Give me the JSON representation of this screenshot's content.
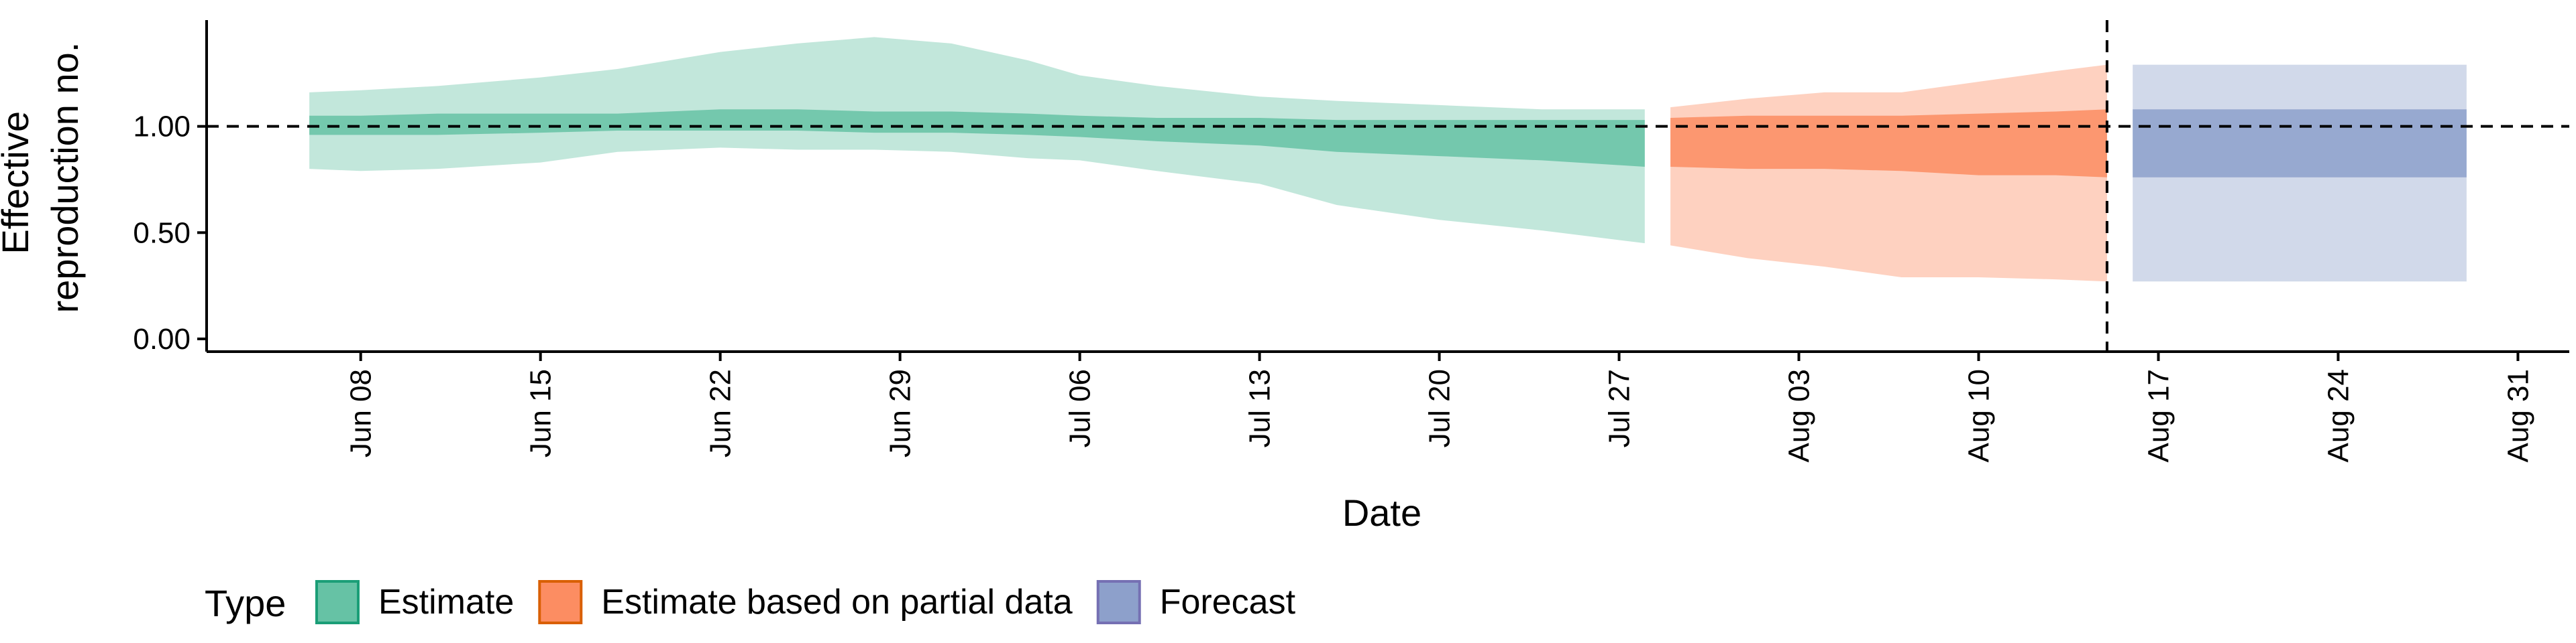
{
  "chart_data": {
    "type": "area",
    "xlabel": "Date",
    "ylabel_lines": [
      "Effective",
      "reproduction no."
    ],
    "x_ticks": [
      {
        "date": "2020-06-08",
        "label": "Jun 08"
      },
      {
        "date": "2020-06-15",
        "label": "Jun 15"
      },
      {
        "date": "2020-06-22",
        "label": "Jun 22"
      },
      {
        "date": "2020-06-29",
        "label": "Jun 29"
      },
      {
        "date": "2020-07-06",
        "label": "Jul 06"
      },
      {
        "date": "2020-07-13",
        "label": "Jul 13"
      },
      {
        "date": "2020-07-20",
        "label": "Jul 20"
      },
      {
        "date": "2020-07-27",
        "label": "Jul 27"
      },
      {
        "date": "2020-08-03",
        "label": "Aug 03"
      },
      {
        "date": "2020-08-10",
        "label": "Aug 10"
      },
      {
        "date": "2020-08-17",
        "label": "Aug 17"
      },
      {
        "date": "2020-08-24",
        "label": "Aug 24"
      },
      {
        "date": "2020-08-31",
        "label": "Aug 31"
      }
    ],
    "y_ticks": [
      {
        "value": 0.0,
        "label": "0.00"
      },
      {
        "value": 0.5,
        "label": "0.50"
      },
      {
        "value": 1.0,
        "label": "1.00"
      }
    ],
    "xlim": [
      "2020-06-02",
      "2020-09-02"
    ],
    "ylim": [
      -0.06,
      1.5
    ],
    "reference_line_y": 1.0,
    "reference_line_date": "2020-08-15",
    "grid": false,
    "legend": {
      "title": "Type",
      "position": "bottom-left",
      "items": [
        {
          "label": "Estimate",
          "fill": "#66c2a5",
          "stroke": "#1b9e77"
        },
        {
          "label": "Estimate based on partial data",
          "fill": "#fc8d62",
          "stroke": "#d95f02"
        },
        {
          "label": "Forecast",
          "fill": "#8da0cb",
          "stroke": "#7570b3"
        }
      ]
    },
    "series": [
      {
        "name": "Estimate",
        "color": "#1b9e77",
        "points": [
          {
            "date": "2020-06-06",
            "outer_lo": 0.8,
            "outer_hi": 1.16,
            "inner_lo": 0.96,
            "inner_hi": 1.05
          },
          {
            "date": "2020-06-08",
            "outer_lo": 0.79,
            "outer_hi": 1.17,
            "inner_lo": 0.96,
            "inner_hi": 1.05
          },
          {
            "date": "2020-06-11",
            "outer_lo": 0.8,
            "outer_hi": 1.19,
            "inner_lo": 0.96,
            "inner_hi": 1.06
          },
          {
            "date": "2020-06-15",
            "outer_lo": 0.83,
            "outer_hi": 1.23,
            "inner_lo": 0.97,
            "inner_hi": 1.06
          },
          {
            "date": "2020-06-18",
            "outer_lo": 0.88,
            "outer_hi": 1.27,
            "inner_lo": 0.98,
            "inner_hi": 1.06
          },
          {
            "date": "2020-06-22",
            "outer_lo": 0.9,
            "outer_hi": 1.35,
            "inner_lo": 0.98,
            "inner_hi": 1.08
          },
          {
            "date": "2020-06-25",
            "outer_lo": 0.89,
            "outer_hi": 1.39,
            "inner_lo": 0.98,
            "inner_hi": 1.08
          },
          {
            "date": "2020-06-28",
            "outer_lo": 0.89,
            "outer_hi": 1.42,
            "inner_lo": 0.97,
            "inner_hi": 1.07
          },
          {
            "date": "2020-07-01",
            "outer_lo": 0.88,
            "outer_hi": 1.39,
            "inner_lo": 0.97,
            "inner_hi": 1.07
          },
          {
            "date": "2020-07-04",
            "outer_lo": 0.85,
            "outer_hi": 1.31,
            "inner_lo": 0.96,
            "inner_hi": 1.06
          },
          {
            "date": "2020-07-06",
            "outer_lo": 0.84,
            "outer_hi": 1.24,
            "inner_lo": 0.95,
            "inner_hi": 1.05
          },
          {
            "date": "2020-07-09",
            "outer_lo": 0.79,
            "outer_hi": 1.19,
            "inner_lo": 0.93,
            "inner_hi": 1.04
          },
          {
            "date": "2020-07-13",
            "outer_lo": 0.73,
            "outer_hi": 1.14,
            "inner_lo": 0.91,
            "inner_hi": 1.04
          },
          {
            "date": "2020-07-16",
            "outer_lo": 0.63,
            "outer_hi": 1.12,
            "inner_lo": 0.88,
            "inner_hi": 1.03
          },
          {
            "date": "2020-07-20",
            "outer_lo": 0.56,
            "outer_hi": 1.1,
            "inner_lo": 0.86,
            "inner_hi": 1.03
          },
          {
            "date": "2020-07-24",
            "outer_lo": 0.51,
            "outer_hi": 1.08,
            "inner_lo": 0.84,
            "inner_hi": 1.03
          },
          {
            "date": "2020-07-28",
            "outer_lo": 0.45,
            "outer_hi": 1.08,
            "inner_lo": 0.81,
            "inner_hi": 1.03
          }
        ]
      },
      {
        "name": "Estimate based on partial data",
        "color": "#d95f02",
        "points": [
          {
            "date": "2020-07-29",
            "outer_lo": 0.44,
            "outer_hi": 1.09,
            "inner_lo": 0.81,
            "inner_hi": 1.04
          },
          {
            "date": "2020-08-01",
            "outer_lo": 0.38,
            "outer_hi": 1.13,
            "inner_lo": 0.8,
            "inner_hi": 1.05
          },
          {
            "date": "2020-08-04",
            "outer_lo": 0.34,
            "outer_hi": 1.16,
            "inner_lo": 0.8,
            "inner_hi": 1.05
          },
          {
            "date": "2020-08-07",
            "outer_lo": 0.29,
            "outer_hi": 1.16,
            "inner_lo": 0.79,
            "inner_hi": 1.05
          },
          {
            "date": "2020-08-10",
            "outer_lo": 0.29,
            "outer_hi": 1.21,
            "inner_lo": 0.77,
            "inner_hi": 1.06
          },
          {
            "date": "2020-08-13",
            "outer_lo": 0.28,
            "outer_hi": 1.26,
            "inner_lo": 0.77,
            "inner_hi": 1.07
          },
          {
            "date": "2020-08-15",
            "outer_lo": 0.27,
            "outer_hi": 1.29,
            "inner_lo": 0.76,
            "inner_hi": 1.08
          }
        ]
      },
      {
        "name": "Forecast",
        "color": "#7570b3",
        "points": [
          {
            "date": "2020-08-16",
            "outer_lo": 0.27,
            "outer_hi": 1.29,
            "inner_lo": 0.76,
            "inner_hi": 1.08
          },
          {
            "date": "2020-08-29",
            "outer_lo": 0.27,
            "outer_hi": 1.29,
            "inner_lo": 0.76,
            "inner_hi": 1.08
          }
        ]
      }
    ]
  }
}
